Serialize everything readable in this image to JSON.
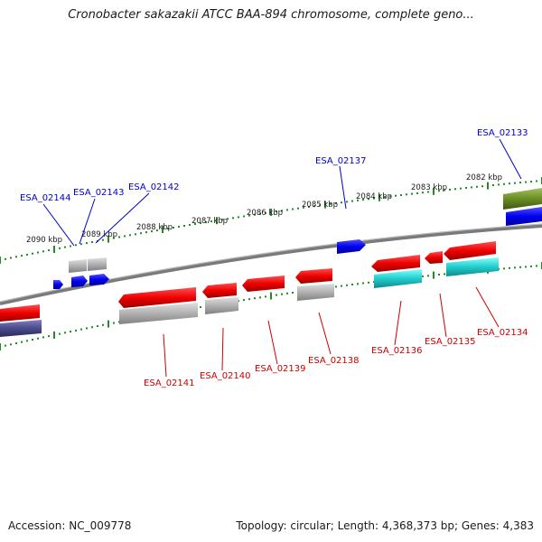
{
  "title": "Cronobacter sakazakii ATCC BAA-894 chromosome, complete geno...",
  "footer": {
    "accession": "Accession: NC_009778",
    "summary": "Topology: circular; Length: 4,368,373 bp; Genes: 4,383"
  },
  "colors": {
    "forward_gene": "#0000ee",
    "reverse_gene": "#ee0000",
    "gray_feature": "#b0b0b0",
    "cyan_feature": "#22cccc",
    "olive_feature": "#6b8e23",
    "navy_feature": "#4a4a8a",
    "forward_label": "#0000cc",
    "reverse_label": "#cc0000",
    "ticks": "#228b22",
    "backbone": "#888888"
  },
  "ticks": [
    "2090 kbp",
    "2089 kbp",
    "2088 kbp",
    "2087 kbp",
    "2086 kbp",
    "2085 kbp",
    "2084 kbp",
    "2083 kbp",
    "2082 kbp"
  ],
  "forward_genes": [
    {
      "label": "ESA_02144"
    },
    {
      "label": "ESA_02143"
    },
    {
      "label": "ESA_02142"
    },
    {
      "label": "ESA_02137"
    },
    {
      "label": "ESA_02133"
    }
  ],
  "reverse_genes": [
    {
      "label": "ESA_02141"
    },
    {
      "label": "ESA_02140"
    },
    {
      "label": "ESA_02139"
    },
    {
      "label": "ESA_02138"
    },
    {
      "label": "ESA_02136"
    },
    {
      "label": "ESA_02135"
    },
    {
      "label": "ESA_02134"
    }
  ]
}
